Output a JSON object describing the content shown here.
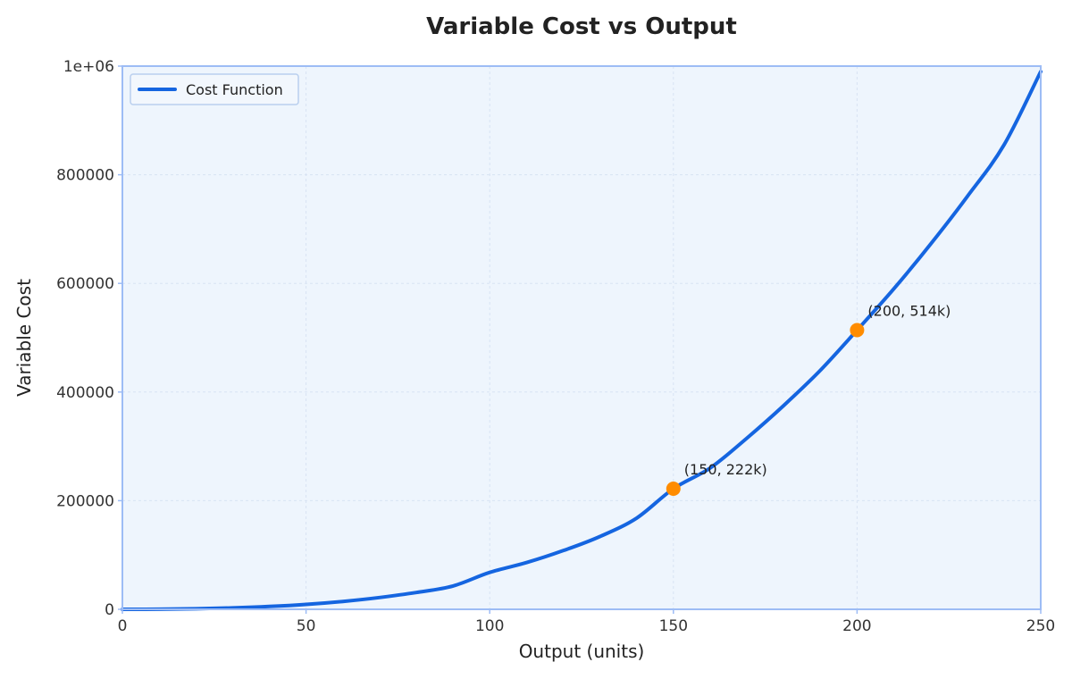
{
  "chart_data": {
    "type": "line",
    "title": "Variable Cost vs Output",
    "xlabel": "Output (units)",
    "ylabel": "Variable Cost",
    "xlim": [
      0,
      250
    ],
    "ylim": [
      0,
      1000000
    ],
    "x_ticks": [
      0,
      50,
      100,
      150,
      200,
      250
    ],
    "x_tick_labels": [
      "0",
      "50",
      "100",
      "150",
      "200",
      "250"
    ],
    "y_ticks": [
      0,
      200000,
      400000,
      600000,
      800000,
      1000000
    ],
    "y_tick_labels": [
      "0",
      "200000",
      "400000",
      "600000",
      "800000",
      "1e+06"
    ],
    "grid": true,
    "legend_position": "top-left",
    "series": [
      {
        "name": "Cost Function",
        "color": "#1565e0",
        "x": [
          0,
          10,
          20,
          30,
          40,
          50,
          60,
          70,
          80,
          90,
          100,
          110,
          120,
          130,
          140,
          150,
          160,
          170,
          180,
          190,
          200,
          210,
          220,
          230,
          240,
          250
        ],
        "y": [
          0,
          200,
          1000,
          2600,
          5200,
          9000,
          14500,
          21700,
          31000,
          43000,
          68000,
          86000,
          108000,
          134000,
          168000,
          222000,
          260000,
          315000,
          375000,
          440000,
          514000,
          590000,
          672000,
          760000,
          855000,
          990000
        ]
      }
    ],
    "annotations": [
      {
        "label": "(150, 222k)",
        "x": 150,
        "y": 222000,
        "color": "#ff8c00"
      },
      {
        "label": "(200, 514k)",
        "x": 200,
        "y": 514000,
        "color": "#ff8c00"
      }
    ],
    "colors": {
      "plot_background": "#eef5fd",
      "plot_border": "#9dbcf5",
      "grid": "#d8e3f3",
      "line": "#1565e0",
      "marker": "#ff8c00"
    }
  }
}
